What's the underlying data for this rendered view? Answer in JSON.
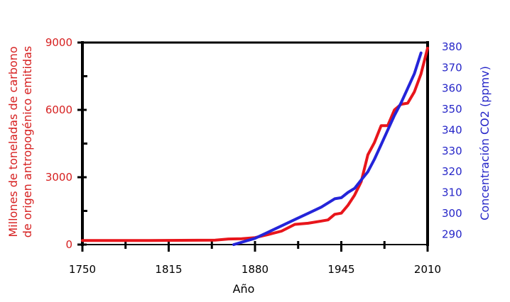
{
  "chart_data": {
    "type": "line",
    "title": "",
    "xlabel": "Año",
    "ylabel_left": "Millones de toneladas de carbono de origen antropogénico emitidas",
    "ylabel_left_lines": [
      "Millones de toneladas de carbono",
      "de origen antropogénico emitidas"
    ],
    "ylabel_right": "Concentración CO2 (ppmv)",
    "xlim": [
      1750,
      2010
    ],
    "ylim_left": [
      0,
      9000
    ],
    "ylim_right": [
      285,
      382
    ],
    "x_ticks": [
      1750,
      1815,
      1880,
      1945,
      2010
    ],
    "x_tick_labels": [
      "1750",
      "1815",
      "1880",
      "1945",
      "2010"
    ],
    "x_minor_ticks": [
      1782.5,
      1847.5,
      1912.5,
      1977.5
    ],
    "y_left_ticks": [
      0,
      3000,
      6000,
      9000
    ],
    "y_left_tick_labels": [
      "0",
      "3000",
      "6000",
      "9000"
    ],
    "y_left_minor_ticks": [
      1500,
      4500,
      7500
    ],
    "y_right_ticks": [
      290,
      300,
      310,
      320,
      330,
      340,
      350,
      360,
      370,
      380
    ],
    "y_right_tick_labels": [
      "290",
      "300",
      "310",
      "320",
      "330",
      "340",
      "350",
      "360",
      "370",
      "380"
    ],
    "grid": false,
    "colors": {
      "left_axis": "#d62020",
      "right_axis": "#2626c8",
      "axis": "#000000"
    },
    "series": [
      {
        "key": "emissions",
        "axis": "left",
        "color": "#e8151b",
        "x": [
          1750,
          1800,
          1850,
          1860,
          1870,
          1880,
          1890,
          1900,
          1910,
          1920,
          1930,
          1935,
          1940,
          1945,
          1950,
          1955,
          1960,
          1965,
          1970,
          1975,
          1980,
          1985,
          1990,
          1995,
          2000,
          2005,
          2010
        ],
        "y": [
          180,
          180,
          200,
          250,
          260,
          310,
          450,
          600,
          900,
          950,
          1050,
          1100,
          1350,
          1400,
          1750,
          2200,
          2800,
          4000,
          4550,
          5300,
          5300,
          6000,
          6250,
          6300,
          6800,
          7600,
          8750
        ]
      },
      {
        "key": "co2",
        "axis": "right",
        "color": "#2424d9",
        "x": [
          1864,
          1880,
          1890,
          1900,
          1910,
          1920,
          1930,
          1940,
          1945,
          1950,
          1955,
          1960,
          1965,
          1970,
          1975,
          1980,
          1985,
          1990,
          1995,
          2000,
          2005
        ],
        "y": [
          285,
          288,
          291,
          294,
          297,
          300,
          303,
          307,
          307.5,
          310,
          312,
          316,
          320,
          326,
          333,
          340,
          347,
          353,
          360,
          367,
          377
        ]
      }
    ]
  }
}
